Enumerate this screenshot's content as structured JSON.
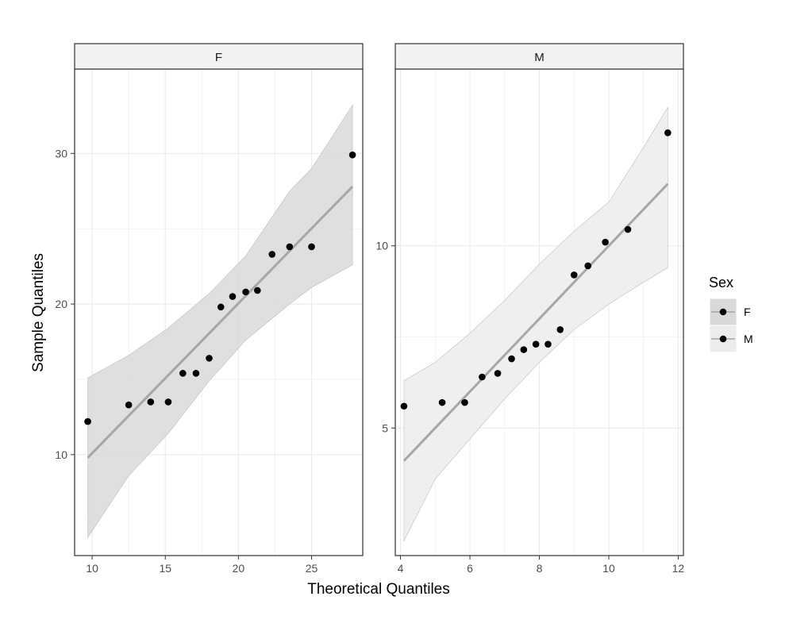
{
  "chart_data": {
    "type": "scatter",
    "description_free": true,
    "xlabel": "Theoretical Quantiles",
    "ylabel": "Sample Quantiles",
    "legend": {
      "title": "Sex",
      "placement": "right",
      "entries": [
        {
          "label": "F",
          "fill": "#d9d9d9"
        },
        {
          "label": "M",
          "fill": "#ececec"
        }
      ]
    },
    "grid": true,
    "colors": {
      "points": "#000000",
      "line": "#a6a6a6",
      "panel_border": "#333333",
      "grid": "#ebebeb",
      "strip_fill": "#f2f2f2"
    },
    "panels": [
      {
        "strip": "F",
        "band_fill": "#d9d9d9",
        "xlim": [
          8.8,
          28.5
        ],
        "ylim": [
          3.3,
          35.6
        ],
        "x_ticks": [
          10,
          15,
          20,
          25
        ],
        "y_ticks": [
          10,
          20,
          30
        ],
        "points": [
          {
            "x": 9.7,
            "y": 12.2
          },
          {
            "x": 12.5,
            "y": 13.3
          },
          {
            "x": 14.0,
            "y": 13.5
          },
          {
            "x": 15.2,
            "y": 13.5
          },
          {
            "x": 16.2,
            "y": 15.4
          },
          {
            "x": 17.1,
            "y": 15.4
          },
          {
            "x": 18.0,
            "y": 16.4
          },
          {
            "x": 18.8,
            "y": 19.8
          },
          {
            "x": 19.6,
            "y": 20.5
          },
          {
            "x": 20.5,
            "y": 20.8
          },
          {
            "x": 21.3,
            "y": 20.9
          },
          {
            "x": 22.3,
            "y": 23.3
          },
          {
            "x": 23.5,
            "y": 23.8
          },
          {
            "x": 25.0,
            "y": 23.8
          },
          {
            "x": 27.8,
            "y": 29.9
          }
        ],
        "line": [
          {
            "x": 9.7,
            "y": 9.8
          },
          {
            "x": 27.8,
            "y": 27.8
          }
        ],
        "band_upper": [
          {
            "x": 9.7,
            "y": 15.1
          },
          {
            "x": 12.5,
            "y": 16.6
          },
          {
            "x": 15.2,
            "y": 18.4
          },
          {
            "x": 18.0,
            "y": 20.7
          },
          {
            "x": 20.5,
            "y": 23.2
          },
          {
            "x": 23.5,
            "y": 27.5
          },
          {
            "x": 25.0,
            "y": 29.0
          },
          {
            "x": 27.8,
            "y": 33.2
          }
        ],
        "band_lower": [
          {
            "x": 27.8,
            "y": 22.6
          },
          {
            "x": 25.0,
            "y": 21.1
          },
          {
            "x": 23.5,
            "y": 20.0
          },
          {
            "x": 20.5,
            "y": 17.6
          },
          {
            "x": 18.0,
            "y": 14.9
          },
          {
            "x": 15.2,
            "y": 11.4
          },
          {
            "x": 12.5,
            "y": 8.6
          },
          {
            "x": 9.7,
            "y": 4.5
          }
        ]
      },
      {
        "strip": "M",
        "band_fill": "#ececec",
        "xlim": [
          3.85,
          12.15
        ],
        "ylim": [
          1.5,
          14.85
        ],
        "x_ticks": [
          4,
          6,
          8,
          10,
          12
        ],
        "y_ticks": [
          5,
          10
        ],
        "points": [
          {
            "x": 4.1,
            "y": 5.6
          },
          {
            "x": 5.2,
            "y": 5.7
          },
          {
            "x": 5.85,
            "y": 5.7
          },
          {
            "x": 6.35,
            "y": 6.4
          },
          {
            "x": 6.8,
            "y": 6.5
          },
          {
            "x": 7.2,
            "y": 6.9
          },
          {
            "x": 7.55,
            "y": 7.15
          },
          {
            "x": 7.9,
            "y": 7.3
          },
          {
            "x": 8.25,
            "y": 7.3
          },
          {
            "x": 8.6,
            "y": 7.7
          },
          {
            "x": 9.0,
            "y": 9.2
          },
          {
            "x": 9.4,
            "y": 9.45
          },
          {
            "x": 9.9,
            "y": 10.1
          },
          {
            "x": 10.55,
            "y": 10.45
          },
          {
            "x": 11.7,
            "y": 13.1
          }
        ],
        "line": [
          {
            "x": 4.1,
            "y": 4.1
          },
          {
            "x": 11.7,
            "y": 11.7
          }
        ],
        "band_upper": [
          {
            "x": 4.1,
            "y": 6.3
          },
          {
            "x": 5.0,
            "y": 6.8
          },
          {
            "x": 6.0,
            "y": 7.6
          },
          {
            "x": 7.0,
            "y": 8.5
          },
          {
            "x": 8.0,
            "y": 9.5
          },
          {
            "x": 9.0,
            "y": 10.4
          },
          {
            "x": 10.0,
            "y": 11.2
          },
          {
            "x": 11.0,
            "y": 12.7
          },
          {
            "x": 11.7,
            "y": 13.8
          }
        ],
        "band_lower": [
          {
            "x": 11.7,
            "y": 9.4
          },
          {
            "x": 11.0,
            "y": 9.0
          },
          {
            "x": 10.0,
            "y": 8.4
          },
          {
            "x": 9.0,
            "y": 7.7
          },
          {
            "x": 8.0,
            "y": 6.8
          },
          {
            "x": 7.0,
            "y": 5.8
          },
          {
            "x": 6.0,
            "y": 4.7
          },
          {
            "x": 5.0,
            "y": 3.6
          },
          {
            "x": 4.1,
            "y": 1.9
          }
        ]
      }
    ]
  }
}
